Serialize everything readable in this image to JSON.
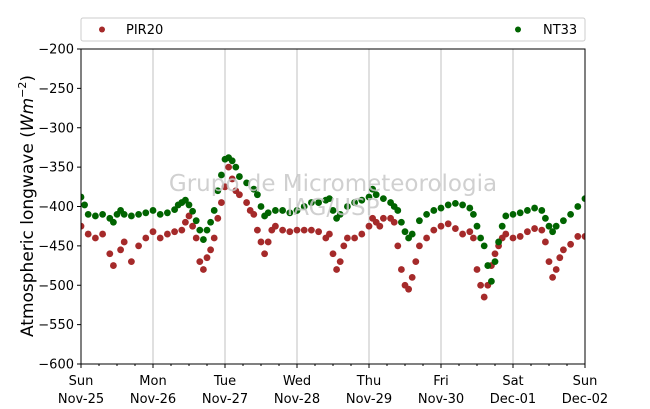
{
  "chart_data": {
    "type": "scatter",
    "ylabel": "Atmospheric longwave (W m^-2)",
    "ylim": [
      -600,
      -200
    ],
    "yticks": [
      -600,
      -550,
      -500,
      -450,
      -400,
      -350,
      -300,
      -250,
      -200
    ],
    "xlim": [
      0,
      7
    ],
    "x_units": "days since Sun Nov-25 00:00",
    "xticks": [
      {
        "x": 0,
        "line1": "Sun",
        "line2": "Nov-25"
      },
      {
        "x": 1,
        "line1": "Mon",
        "line2": "Nov-26"
      },
      {
        "x": 2,
        "line1": "Tue",
        "line2": "Nov-27"
      },
      {
        "x": 3,
        "line1": "Wed",
        "line2": "Nov-28"
      },
      {
        "x": 4,
        "line1": "Thu",
        "line2": "Nov-29"
      },
      {
        "x": 5,
        "line1": "Fri",
        "line2": "Nov-30"
      },
      {
        "x": 6,
        "line1": "Sat",
        "line2": "Dec-01"
      },
      {
        "x": 7,
        "line1": "Sun",
        "line2": "Dec-02"
      }
    ],
    "grid": "vertical",
    "legend_position": "top",
    "watermark": [
      "Grupo de Micrometeorologia",
      "IAG/USP"
    ],
    "series": [
      {
        "name": "PIR20",
        "color": "#a52a2a",
        "points": [
          [
            0.0,
            -425
          ],
          [
            0.1,
            -435
          ],
          [
            0.2,
            -440
          ],
          [
            0.3,
            -435
          ],
          [
            0.4,
            -460
          ],
          [
            0.45,
            -475
          ],
          [
            0.55,
            -455
          ],
          [
            0.6,
            -445
          ],
          [
            0.7,
            -470
          ],
          [
            0.8,
            -450
          ],
          [
            0.9,
            -440
          ],
          [
            1.0,
            -432
          ],
          [
            1.1,
            -440
          ],
          [
            1.2,
            -435
          ],
          [
            1.3,
            -432
          ],
          [
            1.4,
            -430
          ],
          [
            1.45,
            -420
          ],
          [
            1.5,
            -412
          ],
          [
            1.55,
            -425
          ],
          [
            1.6,
            -440
          ],
          [
            1.65,
            -470
          ],
          [
            1.7,
            -480
          ],
          [
            1.75,
            -465
          ],
          [
            1.8,
            -455
          ],
          [
            1.85,
            -440
          ],
          [
            1.9,
            -415
          ],
          [
            1.95,
            -395
          ],
          [
            2.0,
            -375
          ],
          [
            2.05,
            -350
          ],
          [
            2.1,
            -365
          ],
          [
            2.15,
            -380
          ],
          [
            2.2,
            -385
          ],
          [
            2.3,
            -395
          ],
          [
            2.35,
            -405
          ],
          [
            2.4,
            -410
          ],
          [
            2.45,
            -430
          ],
          [
            2.5,
            -445
          ],
          [
            2.55,
            -460
          ],
          [
            2.6,
            -445
          ],
          [
            2.65,
            -430
          ],
          [
            2.7,
            -425
          ],
          [
            2.8,
            -430
          ],
          [
            2.9,
            -432
          ],
          [
            3.0,
            -430
          ],
          [
            3.1,
            -430
          ],
          [
            3.2,
            -430
          ],
          [
            3.3,
            -432
          ],
          [
            3.4,
            -440
          ],
          [
            3.45,
            -435
          ],
          [
            3.5,
            -460
          ],
          [
            3.55,
            -480
          ],
          [
            3.6,
            -470
          ],
          [
            3.65,
            -450
          ],
          [
            3.7,
            -440
          ],
          [
            3.8,
            -440
          ],
          [
            3.9,
            -435
          ],
          [
            4.0,
            -425
          ],
          [
            4.05,
            -415
          ],
          [
            4.1,
            -420
          ],
          [
            4.15,
            -425
          ],
          [
            4.2,
            -415
          ],
          [
            4.3,
            -415
          ],
          [
            4.35,
            -420
          ],
          [
            4.4,
            -450
          ],
          [
            4.45,
            -480
          ],
          [
            4.5,
            -500
          ],
          [
            4.55,
            -505
          ],
          [
            4.6,
            -490
          ],
          [
            4.65,
            -470
          ],
          [
            4.7,
            -450
          ],
          [
            4.8,
            -440
          ],
          [
            4.9,
            -430
          ],
          [
            5.0,
            -425
          ],
          [
            5.1,
            -422
          ],
          [
            5.2,
            -428
          ],
          [
            5.3,
            -435
          ],
          [
            5.4,
            -432
          ],
          [
            5.45,
            -440
          ],
          [
            5.5,
            -480
          ],
          [
            5.55,
            -500
          ],
          [
            5.6,
            -515
          ],
          [
            5.65,
            -500
          ],
          [
            5.7,
            -475
          ],
          [
            5.75,
            -460
          ],
          [
            5.8,
            -450
          ],
          [
            5.85,
            -440
          ],
          [
            5.9,
            -435
          ],
          [
            6.0,
            -440
          ],
          [
            6.1,
            -438
          ],
          [
            6.2,
            -432
          ],
          [
            6.3,
            -428
          ],
          [
            6.4,
            -430
          ],
          [
            6.45,
            -445
          ],
          [
            6.5,
            -470
          ],
          [
            6.55,
            -490
          ],
          [
            6.6,
            -480
          ],
          [
            6.65,
            -465
          ],
          [
            6.7,
            -455
          ],
          [
            6.8,
            -448
          ],
          [
            6.9,
            -438
          ],
          [
            7.0,
            -438
          ]
        ]
      },
      {
        "name": "NT33",
        "color": "#006400",
        "points": [
          [
            0.0,
            -388
          ],
          [
            0.05,
            -398
          ],
          [
            0.1,
            -410
          ],
          [
            0.2,
            -412
          ],
          [
            0.3,
            -410
          ],
          [
            0.4,
            -415
          ],
          [
            0.45,
            -420
          ],
          [
            0.5,
            -410
          ],
          [
            0.55,
            -405
          ],
          [
            0.6,
            -410
          ],
          [
            0.7,
            -412
          ],
          [
            0.8,
            -410
          ],
          [
            0.9,
            -408
          ],
          [
            1.0,
            -405
          ],
          [
            1.1,
            -410
          ],
          [
            1.2,
            -408
          ],
          [
            1.3,
            -404
          ],
          [
            1.35,
            -398
          ],
          [
            1.4,
            -395
          ],
          [
            1.45,
            -392
          ],
          [
            1.5,
            -398
          ],
          [
            1.55,
            -406
          ],
          [
            1.6,
            -418
          ],
          [
            1.65,
            -430
          ],
          [
            1.7,
            -442
          ],
          [
            1.75,
            -430
          ],
          [
            1.8,
            -420
          ],
          [
            1.85,
            -405
          ],
          [
            1.9,
            -380
          ],
          [
            1.95,
            -360
          ],
          [
            2.0,
            -340
          ],
          [
            2.05,
            -338
          ],
          [
            2.1,
            -342
          ],
          [
            2.15,
            -350
          ],
          [
            2.2,
            -362
          ],
          [
            2.3,
            -370
          ],
          [
            2.4,
            -378
          ],
          [
            2.45,
            -385
          ],
          [
            2.5,
            -400
          ],
          [
            2.55,
            -412
          ],
          [
            2.6,
            -408
          ],
          [
            2.7,
            -405
          ],
          [
            2.8,
            -405
          ],
          [
            2.9,
            -408
          ],
          [
            3.0,
            -405
          ],
          [
            3.1,
            -400
          ],
          [
            3.2,
            -395
          ],
          [
            3.3,
            -395
          ],
          [
            3.4,
            -392
          ],
          [
            3.45,
            -390
          ],
          [
            3.5,
            -405
          ],
          [
            3.55,
            -415
          ],
          [
            3.6,
            -410
          ],
          [
            3.7,
            -400
          ],
          [
            3.8,
            -395
          ],
          [
            3.9,
            -392
          ],
          [
            4.0,
            -388
          ],
          [
            4.05,
            -378
          ],
          [
            4.1,
            -385
          ],
          [
            4.2,
            -390
          ],
          [
            4.3,
            -395
          ],
          [
            4.35,
            -400
          ],
          [
            4.4,
            -405
          ],
          [
            4.45,
            -420
          ],
          [
            4.5,
            -432
          ],
          [
            4.55,
            -440
          ],
          [
            4.6,
            -435
          ],
          [
            4.7,
            -418
          ],
          [
            4.8,
            -410
          ],
          [
            4.9,
            -405
          ],
          [
            5.0,
            -402
          ],
          [
            5.1,
            -398
          ],
          [
            5.2,
            -396
          ],
          [
            5.3,
            -398
          ],
          [
            5.4,
            -402
          ],
          [
            5.45,
            -410
          ],
          [
            5.5,
            -425
          ],
          [
            5.55,
            -440
          ],
          [
            5.6,
            -450
          ],
          [
            5.65,
            -475
          ],
          [
            5.7,
            -495
          ],
          [
            5.75,
            -470
          ],
          [
            5.8,
            -445
          ],
          [
            5.85,
            -425
          ],
          [
            5.9,
            -412
          ],
          [
            6.0,
            -410
          ],
          [
            6.1,
            -408
          ],
          [
            6.2,
            -405
          ],
          [
            6.3,
            -402
          ],
          [
            6.4,
            -405
          ],
          [
            6.45,
            -415
          ],
          [
            6.5,
            -425
          ],
          [
            6.55,
            -432
          ],
          [
            6.6,
            -425
          ],
          [
            6.7,
            -418
          ],
          [
            6.8,
            -410
          ],
          [
            6.9,
            -400
          ],
          [
            7.0,
            -390
          ]
        ]
      }
    ]
  }
}
